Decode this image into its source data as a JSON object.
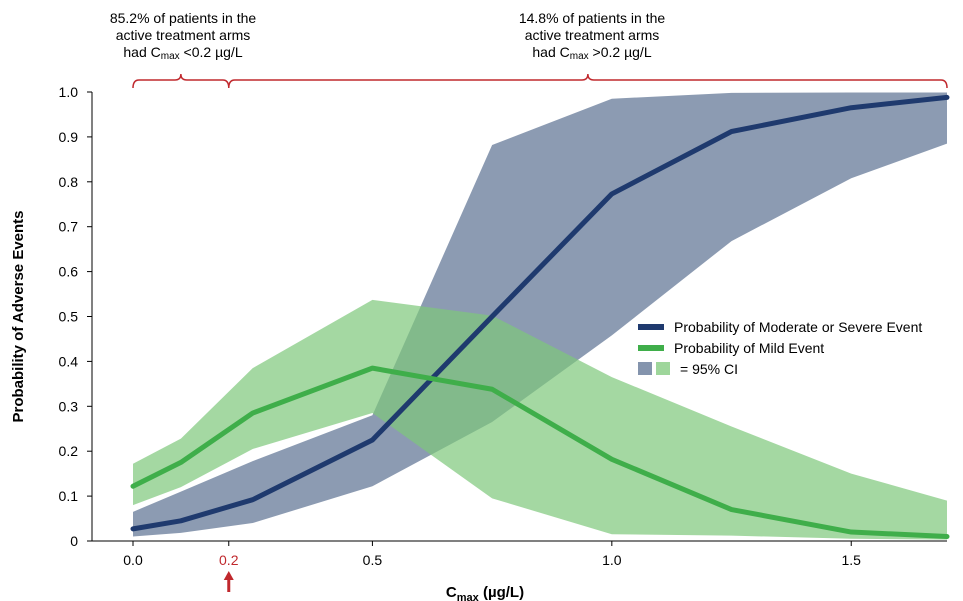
{
  "chart_data": {
    "type": "line",
    "ylabel": "Probability of Adverse Events",
    "xlabel_main": "C",
    "xlabel_sub": "max",
    "xlabel_rest": " (µg/L)",
    "xlim": [
      0,
      1.7
    ],
    "ylim": [
      0,
      1.0
    ],
    "xticks": [
      {
        "value": 0.0,
        "label": "0.0"
      },
      {
        "value": 0.2,
        "label": "0.2",
        "highlight": true
      },
      {
        "value": 0.5,
        "label": "0.5"
      },
      {
        "value": 1.0,
        "label": "1.0"
      },
      {
        "value": 1.5,
        "label": "1.5"
      }
    ],
    "yticks": [
      {
        "value": 0,
        "label": "0"
      },
      {
        "value": 0.1,
        "label": "0.1"
      },
      {
        "value": 0.2,
        "label": "0.2"
      },
      {
        "value": 0.3,
        "label": "0.3"
      },
      {
        "value": 0.4,
        "label": "0.4"
      },
      {
        "value": 0.5,
        "label": "0.5"
      },
      {
        "value": 0.6,
        "label": "0.6"
      },
      {
        "value": 0.7,
        "label": "0.7"
      },
      {
        "value": 0.8,
        "label": "0.8"
      },
      {
        "value": 0.9,
        "label": "0.9"
      },
      {
        "value": 1.0,
        "label": "1.0"
      }
    ],
    "series": [
      {
        "name": "Probability of Moderate or Severe Event",
        "color": "#1f3a6e",
        "band_color": "#5b7092",
        "x": [
          0.0,
          0.1,
          0.25,
          0.5,
          0.75,
          1.0,
          1.25,
          1.5,
          1.7
        ],
        "y": [
          0.027,
          0.045,
          0.092,
          0.225,
          0.5,
          0.773,
          0.912,
          0.965,
          0.988
        ],
        "lower": [
          0.01,
          0.018,
          0.04,
          0.122,
          0.265,
          0.458,
          0.668,
          0.808,
          0.885
        ],
        "upper": [
          0.065,
          0.11,
          0.178,
          0.28,
          0.882,
          0.985,
          0.998,
          0.999,
          0.999
        ]
      },
      {
        "name": "Probability of Mild Event",
        "color": "#3fae4a",
        "band_color": "#7dc87a",
        "x": [
          0.0,
          0.1,
          0.25,
          0.5,
          0.75,
          1.0,
          1.25,
          1.5,
          1.7
        ],
        "y": [
          0.122,
          0.175,
          0.285,
          0.385,
          0.338,
          0.182,
          0.07,
          0.02,
          0.01
        ],
        "lower": [
          0.08,
          0.12,
          0.205,
          0.285,
          0.095,
          0.015,
          0.012,
          0.005,
          0.003
        ],
        "upper": [
          0.172,
          0.228,
          0.385,
          0.537,
          0.502,
          0.365,
          0.255,
          0.15,
          0.09
        ]
      }
    ],
    "ci_legend_label": "= 95% CI",
    "annotations": {
      "left": {
        "line1": "85.2% of patients in the",
        "line2": "active treatment arms",
        "line3_pre": "had C",
        "line3_sub": "max",
        "line3_post": " <0.2 µg/L",
        "range": [
          0.0,
          0.2
        ]
      },
      "right": {
        "line1": "14.8% of patients in the",
        "line2": "active treatment arms",
        "line3_pre": "had C",
        "line3_sub": "max",
        "line3_post": " >0.2 µg/L",
        "range": [
          0.2,
          1.7
        ]
      },
      "bracket_color": "#c0282d"
    },
    "highlight_color": "#c0282d",
    "grid": false,
    "legend_position": "right"
  }
}
